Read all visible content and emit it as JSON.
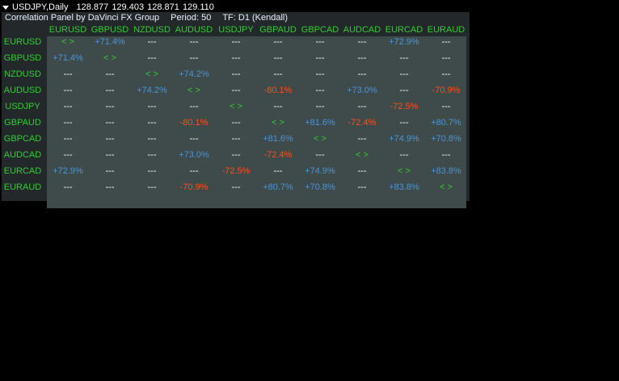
{
  "chart_header": {
    "symbol": "USDJPY,Daily",
    "prices": "128.877 129.403 128.871 129.110"
  },
  "panel": {
    "title": "Correlation Panel by DaVinci FX Group",
    "period": "Period: 50",
    "timeframe": "TF: D1 (Kendall)"
  },
  "pairs": [
    "EURUSD",
    "GBPUSD",
    "NZDUSD",
    "AUDUSD",
    "USDJPY",
    "GBPAUD",
    "GBPCAD",
    "AUDCAD",
    "EURCAD",
    "EURAUD"
  ],
  "matrix": [
    [
      "< >",
      "+71.4%",
      "---",
      "---",
      "---",
      "---",
      "---",
      "---",
      "+72.9%",
      "---"
    ],
    [
      "+71.4%",
      "< >",
      "---",
      "---",
      "---",
      "---",
      "---",
      "---",
      "---",
      "---"
    ],
    [
      "---",
      "---",
      "< >",
      "+74.2%",
      "---",
      "---",
      "---",
      "---",
      "---",
      "---"
    ],
    [
      "---",
      "---",
      "+74.2%",
      "< >",
      "---",
      "-80.1%",
      "---",
      "+73.0%",
      "---",
      "-70.9%"
    ],
    [
      "---",
      "---",
      "---",
      "---",
      "< >",
      "---",
      "---",
      "---",
      "-72.5%",
      "---"
    ],
    [
      "---",
      "---",
      "---",
      "-80.1%",
      "---",
      "< >",
      "+81.6%",
      "-72.4%",
      "---",
      "+80.7%"
    ],
    [
      "---",
      "---",
      "---",
      "---",
      "---",
      "+81.6%",
      "< >",
      "---",
      "+74.9%",
      "+70.8%"
    ],
    [
      "---",
      "---",
      "---",
      "+73.0%",
      "---",
      "-72.4%",
      "---",
      "< >",
      "---",
      "---"
    ],
    [
      "+72.9%",
      "---",
      "---",
      "---",
      "-72.5%",
      "---",
      "+74.9%",
      "---",
      "< >",
      "+83.8%"
    ],
    [
      "---",
      "---",
      "---",
      "-70.9%",
      "---",
      "+80.7%",
      "+70.8%",
      "---",
      "+83.8%",
      "< >"
    ]
  ],
  "colors": {
    "positive": "#4a95d8",
    "negative": "#ff4d1a",
    "neutral": "#ffffff",
    "label": "#33cc33"
  }
}
